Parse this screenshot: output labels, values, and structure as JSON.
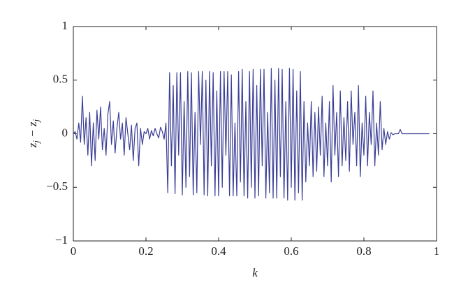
{
  "chart_data": {
    "type": "line",
    "xlabel": "k",
    "ylabel": [
      "z",
      "j",
      " − z",
      "j"
    ],
    "xlim": [
      0,
      1
    ],
    "ylim": [
      -1,
      1
    ],
    "xticks": [
      0,
      0.2,
      0.4,
      0.6,
      0.8,
      1
    ],
    "yticks": [
      {
        "value": -1,
        "label": "−1"
      },
      {
        "value": -0.5,
        "label": "−0.5"
      },
      0,
      0.5,
      1
    ],
    "x": [
      0,
      0.005,
      0.01,
      0.015,
      0.02,
      0.025,
      0.03,
      0.035,
      0.04,
      0.045,
      0.05,
      0.055,
      0.06,
      0.065,
      0.07,
      0.075,
      0.08,
      0.085,
      0.09,
      0.095,
      0.1,
      0.105,
      0.11,
      0.115,
      0.12,
      0.125,
      0.13,
      0.135,
      0.14,
      0.145,
      0.15,
      0.155,
      0.16,
      0.165,
      0.17,
      0.175,
      0.18,
      0.185,
      0.19,
      0.195,
      0.2,
      0.205,
      0.21,
      0.215,
      0.22,
      0.225,
      0.23,
      0.235,
      0.24,
      0.245,
      0.25,
      0.255,
      0.26,
      0.265,
      0.27,
      0.275,
      0.28,
      0.285,
      0.29,
      0.295,
      0.3,
      0.305,
      0.31,
      0.315,
      0.32,
      0.325,
      0.33,
      0.335,
      0.34,
      0.345,
      0.35,
      0.355,
      0.36,
      0.365,
      0.37,
      0.375,
      0.38,
      0.385,
      0.39,
      0.395,
      0.4,
      0.405,
      0.41,
      0.415,
      0.42,
      0.425,
      0.43,
      0.435,
      0.44,
      0.445,
      0.45,
      0.455,
      0.46,
      0.465,
      0.47,
      0.475,
      0.48,
      0.485,
      0.49,
      0.495,
      0.5,
      0.505,
      0.51,
      0.515,
      0.52,
      0.525,
      0.53,
      0.535,
      0.54,
      0.545,
      0.55,
      0.555,
      0.56,
      0.565,
      0.57,
      0.575,
      0.58,
      0.585,
      0.59,
      0.595,
      0.6,
      0.605,
      0.61,
      0.615,
      0.62,
      0.625,
      0.63,
      0.635,
      0.64,
      0.645,
      0.65,
      0.655,
      0.66,
      0.665,
      0.67,
      0.675,
      0.68,
      0.685,
      0.69,
      0.695,
      0.7,
      0.705,
      0.71,
      0.715,
      0.72,
      0.725,
      0.73,
      0.735,
      0.74,
      0.745,
      0.75,
      0.755,
      0.76,
      0.765,
      0.77,
      0.775,
      0.78,
      0.785,
      0.79,
      0.795,
      0.8,
      0.805,
      0.81,
      0.815,
      0.82,
      0.825,
      0.83,
      0.835,
      0.84,
      0.845,
      0.85,
      0.855,
      0.86,
      0.865,
      0.87,
      0.875,
      0.88,
      0.885,
      0.89,
      0.895,
      0.9,
      0.905,
      0.91,
      0.915,
      0.92,
      0.925,
      0.93,
      0.935,
      0.94,
      0.945,
      0.95,
      0.955,
      0.96,
      0.965,
      0.97,
      0.975,
      0.98
    ],
    "series": [
      {
        "color": "#3b3f96",
        "values": [
          0,
          0.02,
          -0.05,
          0.1,
          -0.08,
          0.35,
          -0.1,
          0.15,
          -0.2,
          0.2,
          -0.3,
          0.1,
          -0.25,
          0.22,
          -0.05,
          0.25,
          -0.15,
          0.05,
          -0.2,
          0.18,
          0.3,
          -0.1,
          0.12,
          -0.18,
          0.05,
          0.2,
          -0.05,
          0.1,
          -0.2,
          0.15,
          0,
          -0.15,
          0.08,
          -0.25,
          0.05,
          0.1,
          -0.3,
          0.05,
          -0.1,
          0.02,
          0,
          0.05,
          -0.05,
          0.03,
          -0.02,
          0.05,
          0,
          -0.04,
          0.06,
          0.02,
          -0.05,
          0.1,
          -0.55,
          0.57,
          -0.3,
          0.45,
          -0.56,
          0.57,
          -0.2,
          0.57,
          -0.57,
          0.3,
          -0.5,
          0.58,
          -0.4,
          0.57,
          -0.57,
          0.2,
          -0.55,
          0.58,
          -0.1,
          0.58,
          -0.57,
          0.5,
          -0.58,
          0.58,
          -0.3,
          0.57,
          -0.58,
          0.4,
          -0.58,
          0.58,
          -0.5,
          0.58,
          -0.2,
          0.58,
          -0.58,
          0.55,
          -0.58,
          0.1,
          -0.58,
          0.58,
          -0.45,
          0.6,
          -0.58,
          0.3,
          -0.6,
          0.58,
          -0.5,
          0.6,
          -0.6,
          0.45,
          -0.58,
          0.6,
          -0.3,
          0.6,
          -0.6,
          0.2,
          -0.55,
          0.61,
          -0.6,
          0.5,
          -0.6,
          0.61,
          -0.4,
          0.6,
          -0.6,
          0.3,
          -0.62,
          0.61,
          -0.5,
          0.6,
          -0.62,
          0.4,
          -0.55,
          0.58,
          -0.62,
          0.3,
          -0.45,
          0.1,
          -0.3,
          0.3,
          -0.4,
          0.2,
          -0.35,
          0.25,
          -0.2,
          0.35,
          -0.4,
          0.1,
          -0.3,
          0.3,
          -0.45,
          0.45,
          -0.2,
          0.2,
          -0.4,
          0.4,
          -0.3,
          0.15,
          -0.25,
          0.3,
          -0.35,
          0.4,
          -0.1,
          0.2,
          -0.3,
          0.45,
          -0.4,
          0.1,
          -0.2,
          0.35,
          -0.3,
          0.2,
          -0.1,
          0.4,
          -0.3,
          0.1,
          -0.2,
          0.3,
          -0.15,
          0.05,
          -0.1,
          0.02,
          -0.05,
          0.01,
          -0.01,
          0,
          0,
          0,
          0.04,
          0,
          0,
          0,
          0,
          0,
          0,
          0,
          0,
          0,
          0,
          0,
          0,
          0,
          0,
          0,
          0
        ]
      }
    ]
  }
}
